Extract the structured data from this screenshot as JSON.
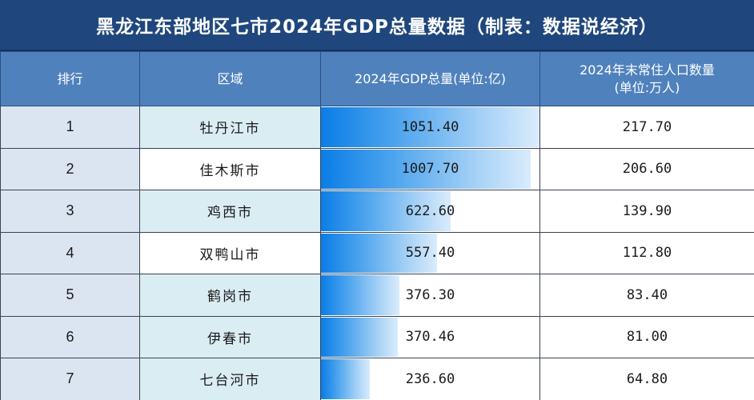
{
  "title": "黑龙江东部地区七市2024年GDP总量数据（制表：数据说经济）",
  "columns": [
    "排行",
    "区域",
    "2024年GDP总量(单位:亿)",
    "2024年末常住人口数量\n(单位:万人)"
  ],
  "column_labels": {
    "rank": "排行",
    "region": "区域",
    "gdp": "2024年GDP总量(单位:亿)",
    "pop_line1": "2024年末常住人口数量",
    "pop_line2": "(单位:万人)"
  },
  "colors": {
    "title_bg": "#1f477d",
    "header_bg": "#4f81bd",
    "rank_bg": "#dbe4f1",
    "region_alt_bg": "#daedf3",
    "bar_start": "#0a7de6",
    "bar_end": "#d9ecfc"
  },
  "rows": [
    {
      "rank": "1",
      "region": "牡丹江市",
      "gdp": "1051.40",
      "pop": "217.70"
    },
    {
      "rank": "2",
      "region": "佳木斯市",
      "gdp": "1007.70",
      "pop": "206.60"
    },
    {
      "rank": "3",
      "region": "鸡西市",
      "gdp": "622.60",
      "pop": "139.90"
    },
    {
      "rank": "4",
      "region": "双鸭山市",
      "gdp": "557.40",
      "pop": "112.80"
    },
    {
      "rank": "5",
      "region": "鹤岗市",
      "gdp": "376.30",
      "pop": "83.40"
    },
    {
      "rank": "6",
      "region": "伊春市",
      "gdp": "370.46",
      "pop": "81.00"
    },
    {
      "rank": "7",
      "region": "七台河市",
      "gdp": "236.60",
      "pop": "64.80"
    }
  ],
  "gdp_bar_max": 1051.4
}
